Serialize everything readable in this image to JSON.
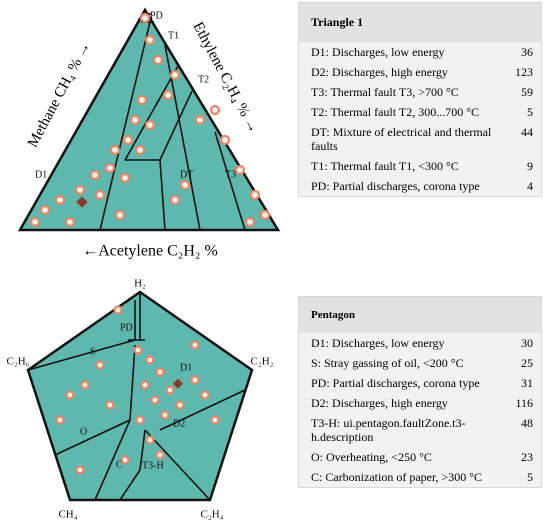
{
  "triangle": {
    "axis_labels": {
      "left": "Methane CH₄ % →",
      "right": "Ethylene C₂H₄ % →",
      "bottom": "←Acetylene C₂H₂ %"
    },
    "zones": [
      "PD",
      "T1",
      "T2",
      "D1",
      "DT",
      "T3"
    ],
    "table": {
      "title": "Triangle 1",
      "rows": [
        [
          "D1: Discharges, low energy",
          36
        ],
        [
          "D2: Discharges, high energy",
          123
        ],
        [
          "T3: Thermal fault T3, >700 °C",
          59
        ],
        [
          "T2: Thermal fault T2, 300...700 °C",
          5
        ],
        [
          "DT: Mixture of electrical and thermal faults",
          44
        ],
        [
          "T1: Thermal fault T1, <300 °C",
          9
        ],
        [
          "PD: Partial discharges, corona type",
          4
        ]
      ]
    }
  },
  "pentagon": {
    "vertex_labels": [
      "H₂",
      "C₂H₂",
      "C₂H₄",
      "CH₄",
      "C₂H₆"
    ],
    "zones": [
      "PD",
      "S",
      "D1",
      "D2",
      "O",
      "C",
      "T3-H"
    ],
    "table": {
      "title": "Pentagon",
      "rows": [
        [
          "D1: Discharges, low energy",
          30
        ],
        [
          "S: Stray gassing of oil, <200 °C",
          25
        ],
        [
          "PD: Partial discharges, corona type",
          31
        ],
        [
          "D2: Discharges, high energy",
          116
        ],
        [
          "T3-H: ui.pentagon.faultZone.t3-h.description",
          48
        ],
        [
          "O: Overheating, <250 °C",
          23
        ],
        [
          "C: Carbonization of paper, >300 °C",
          5
        ]
      ]
    }
  }
}
